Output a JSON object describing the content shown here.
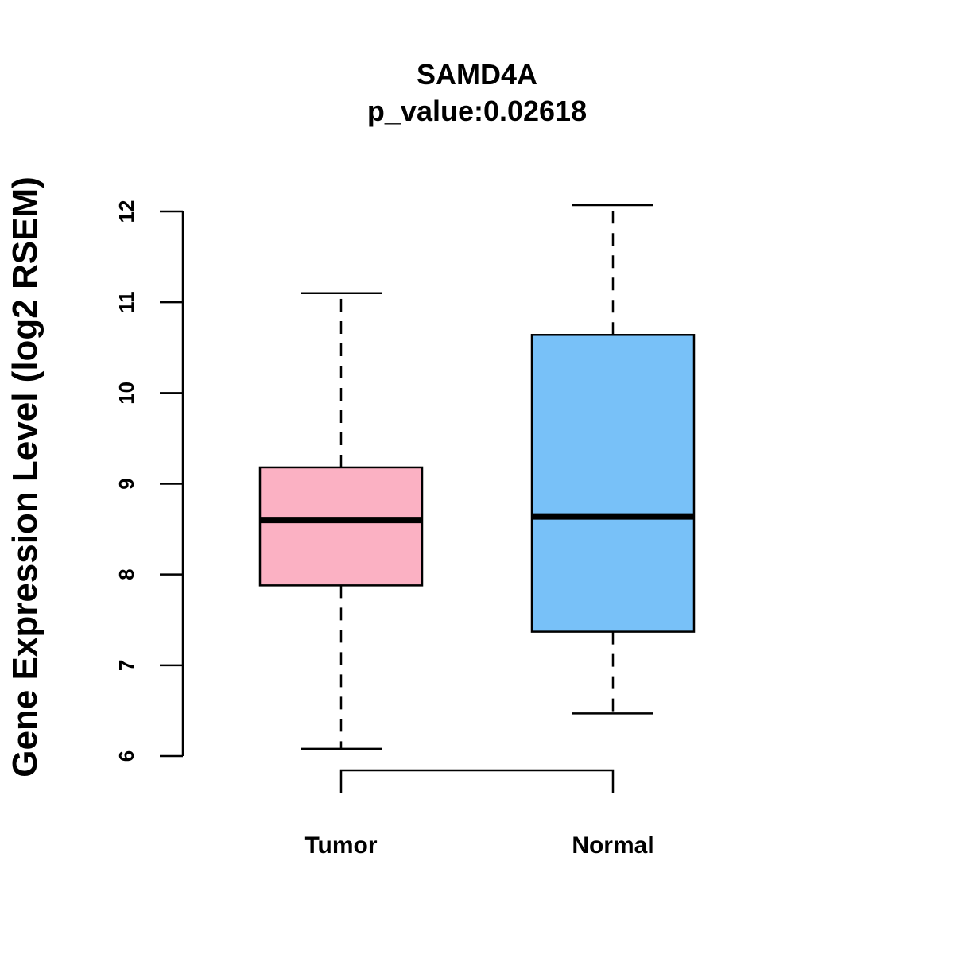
{
  "chart_data": {
    "type": "boxplot",
    "title": "SAMD4A",
    "subtitle": "p_value:0.02618",
    "xlabel": "",
    "ylabel": "Gene Expression Level (log2 RSEM)",
    "ylim": [
      6,
      12
    ],
    "yticks": [
      6,
      7,
      8,
      9,
      10,
      11,
      12
    ],
    "yticks_text": [
      "6",
      "7",
      "8",
      "9",
      "10",
      "11",
      "12"
    ],
    "categories": [
      "Tumor",
      "Normal"
    ],
    "boxes": [
      {
        "name": "Tumor",
        "color": "#FBB1C3",
        "whisker_low": 6.08,
        "q1": 7.88,
        "median": 8.6,
        "q3": 9.18,
        "whisker_high": 11.1
      },
      {
        "name": "Normal",
        "color": "#78C1F8",
        "whisker_low": 6.47,
        "q1": 7.37,
        "median": 8.64,
        "q3": 10.64,
        "whisker_high": 12.07
      }
    ],
    "comparison_bracket": [
      "Tumor",
      "Normal"
    ]
  }
}
